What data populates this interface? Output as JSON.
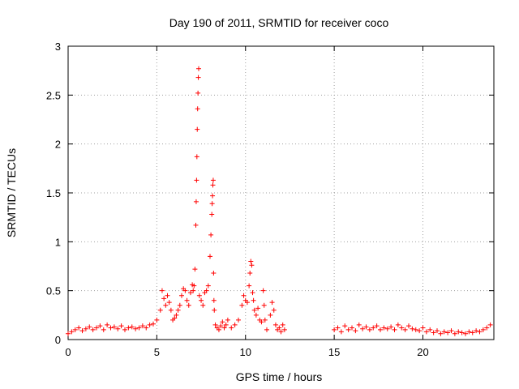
{
  "chart_data": {
    "type": "scatter",
    "title": "Day 190 of 2011, SRMTID for receiver coco",
    "xlabel": "GPS time / hours",
    "ylabel": "SRMTID / TECUs",
    "xlim": [
      0,
      24
    ],
    "ylim": [
      0,
      3
    ],
    "xticks": [
      0,
      5,
      10,
      15,
      20
    ],
    "xtick_labels": [
      "0",
      "5",
      "10",
      "15",
      "20"
    ],
    "yticks": [
      0,
      0.5,
      1,
      1.5,
      2,
      2.5,
      3
    ],
    "ytick_labels": [
      "0",
      "0.5",
      "1",
      "1.5",
      "2",
      "2.5",
      "3"
    ],
    "grid": true,
    "marker": "+",
    "series": [
      {
        "name": "SRMTID",
        "color": "#ff0000",
        "x": [
          0.0,
          0.2,
          0.4,
          0.6,
          0.8,
          1.0,
          1.2,
          1.4,
          1.6,
          1.8,
          2.0,
          2.2,
          2.4,
          2.6,
          2.8,
          3.0,
          3.2,
          3.4,
          3.6,
          3.8,
          4.0,
          4.2,
          4.4,
          4.6,
          4.8,
          5.0,
          5.2,
          5.3,
          5.4,
          5.5,
          5.6,
          5.7,
          5.8,
          5.9,
          6.0,
          6.1,
          6.2,
          6.3,
          6.4,
          6.5,
          6.6,
          6.7,
          6.8,
          6.9,
          7.0,
          7.05,
          7.1,
          7.15,
          7.2,
          7.22,
          7.24,
          7.26,
          7.28,
          7.3,
          7.32,
          7.34,
          7.36,
          7.4,
          7.5,
          7.6,
          7.7,
          7.8,
          7.9,
          8.0,
          8.05,
          8.1,
          8.12,
          8.14,
          8.16,
          8.18,
          8.2,
          8.22,
          8.24,
          8.3,
          8.4,
          8.5,
          8.6,
          8.7,
          8.8,
          8.9,
          9.0,
          9.2,
          9.4,
          9.6,
          9.8,
          9.9,
          10.0,
          10.1,
          10.2,
          10.25,
          10.3,
          10.35,
          10.4,
          10.45,
          10.5,
          10.6,
          10.7,
          10.8,
          10.9,
          11.0,
          11.05,
          11.1,
          11.2,
          11.4,
          11.5,
          11.6,
          11.7,
          11.8,
          11.9,
          12.0,
          12.1,
          12.2,
          15.0,
          15.2,
          15.4,
          15.6,
          15.8,
          16.0,
          16.2,
          16.4,
          16.6,
          16.8,
          17.0,
          17.2,
          17.4,
          17.6,
          17.8,
          18.0,
          18.2,
          18.4,
          18.6,
          18.8,
          19.0,
          19.2,
          19.4,
          19.6,
          19.8,
          20.0,
          20.2,
          20.4,
          20.6,
          20.8,
          21.0,
          21.2,
          21.4,
          21.6,
          21.8,
          22.0,
          22.2,
          22.4,
          22.6,
          22.8,
          23.0,
          23.2,
          23.4,
          23.6,
          23.8
        ],
        "y": [
          0.06,
          0.08,
          0.1,
          0.12,
          0.09,
          0.11,
          0.13,
          0.1,
          0.12,
          0.14,
          0.1,
          0.15,
          0.12,
          0.13,
          0.11,
          0.14,
          0.1,
          0.12,
          0.13,
          0.11,
          0.12,
          0.14,
          0.12,
          0.15,
          0.16,
          0.2,
          0.3,
          0.5,
          0.42,
          0.35,
          0.45,
          0.38,
          0.3,
          0.2,
          0.22,
          0.25,
          0.3,
          0.35,
          0.45,
          0.52,
          0.5,
          0.4,
          0.35,
          0.48,
          0.56,
          0.5,
          0.55,
          0.72,
          1.17,
          1.41,
          1.63,
          1.87,
          2.15,
          2.36,
          2.52,
          2.68,
          2.77,
          0.45,
          0.4,
          0.35,
          0.48,
          0.5,
          0.55,
          0.85,
          1.07,
          1.28,
          1.39,
          1.47,
          1.58,
          1.63,
          0.68,
          0.4,
          0.3,
          0.15,
          0.12,
          0.1,
          0.14,
          0.18,
          0.12,
          0.15,
          0.2,
          0.12,
          0.15,
          0.2,
          0.35,
          0.45,
          0.4,
          0.38,
          0.55,
          0.68,
          0.8,
          0.76,
          0.48,
          0.4,
          0.3,
          0.25,
          0.32,
          0.2,
          0.18,
          0.5,
          0.35,
          0.2,
          0.1,
          0.25,
          0.38,
          0.3,
          0.15,
          0.1,
          0.12,
          0.08,
          0.15,
          0.1,
          0.1,
          0.12,
          0.08,
          0.14,
          0.1,
          0.12,
          0.09,
          0.15,
          0.11,
          0.13,
          0.1,
          0.12,
          0.14,
          0.1,
          0.12,
          0.11,
          0.13,
          0.1,
          0.15,
          0.12,
          0.1,
          0.14,
          0.11,
          0.1,
          0.09,
          0.12,
          0.08,
          0.1,
          0.07,
          0.09,
          0.06,
          0.08,
          0.07,
          0.09,
          0.06,
          0.08,
          0.07,
          0.06,
          0.08,
          0.07,
          0.09,
          0.08,
          0.1,
          0.12,
          0.15
        ]
      }
    ]
  }
}
